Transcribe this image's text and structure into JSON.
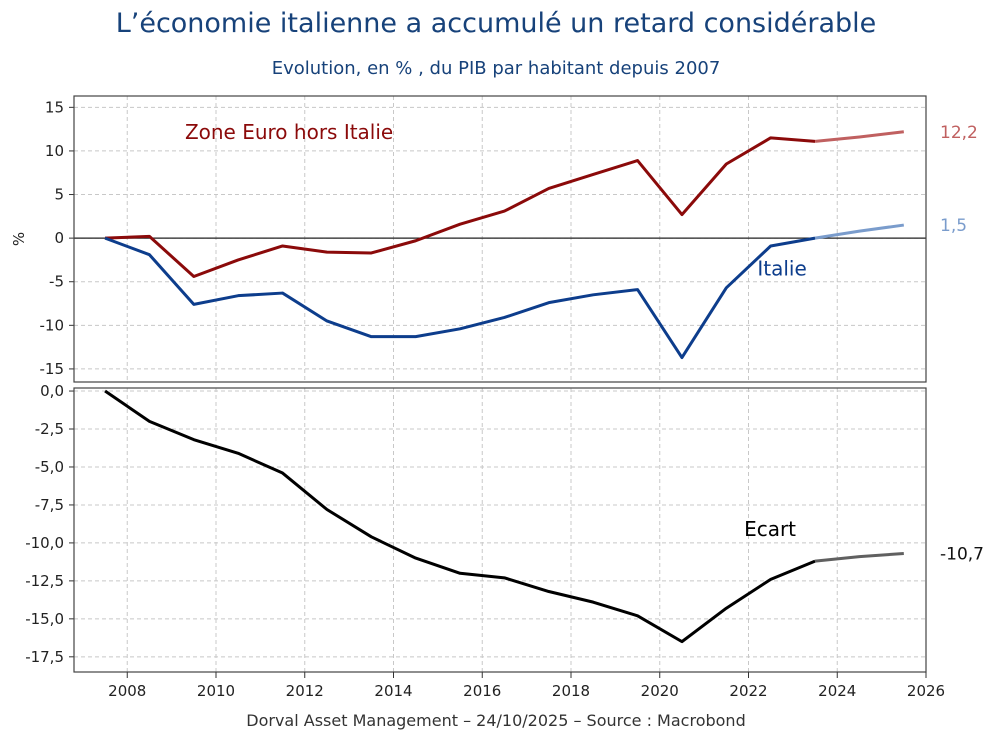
{
  "title": "L’économie italienne a accumulé un retard considérable",
  "subtitle": "Evolution, en % , du PIB par habitant depuis 2007",
  "footer": "Dorval Asset Management – 24/10/2025 –   Source : Macrobond",
  "colors": {
    "title": "#17427a",
    "zone_euro": "#8b0a0a",
    "zone_euro_forecast": "#c06060",
    "italie": "#0d3d8c",
    "italie_forecast": "#7a9ccc",
    "ecart": "#000000",
    "ecart_forecast": "#606060",
    "grid": "#c8c8c8"
  },
  "chart_data": [
    {
      "type": "line",
      "ylabel": "%",
      "ylim": [
        -16,
        16
      ],
      "yticks": [
        15,
        10,
        5,
        0,
        -5,
        -10,
        -15
      ],
      "ytick_labels": [
        "15",
        "10",
        "5",
        "0",
        "-5",
        "-10",
        "-15"
      ],
      "grid": true,
      "zero_line": true,
      "x": [
        2007.5,
        2008.5,
        2009.5,
        2010.5,
        2011.5,
        2012.5,
        2013.5,
        2014.5,
        2015.5,
        2016.5,
        2017.5,
        2018.5,
        2019.5,
        2020.5,
        2021.5,
        2022.5,
        2023.5,
        2024.5,
        2025.5
      ],
      "forecast_from_x": 2023.5,
      "series": [
        {
          "name": "Zone Euro hors Italie",
          "values": [
            0,
            0.2,
            -4.4,
            -2.5,
            -0.9,
            -1.6,
            -1.7,
            -0.3,
            1.6,
            3.1,
            5.7,
            7.3,
            8.9,
            2.7,
            8.5,
            11.5,
            11.1,
            11.6,
            12.2
          ],
          "end_label": "12,2"
        },
        {
          "name": "Italie",
          "values": [
            0,
            -1.9,
            -7.6,
            -6.6,
            -6.3,
            -9.5,
            -11.3,
            -11.3,
            -10.4,
            -9.1,
            -7.4,
            -6.5,
            -5.9,
            -13.7,
            -5.7,
            -0.9,
            0,
            0.8,
            1.5
          ],
          "end_label": "1,5"
        }
      ]
    },
    {
      "type": "line",
      "ylim": [
        -18.5,
        0.2
      ],
      "yticks": [
        0,
        -2.5,
        -5,
        -7.5,
        -10,
        -12.5,
        -15,
        -17.5
      ],
      "ytick_labels": [
        "0,0",
        "-2,5",
        "-5,0",
        "-7,5",
        "-10,0",
        "-12,5",
        "-15,0",
        "-17,5"
      ],
      "grid": true,
      "x": [
        2007.5,
        2008.5,
        2009.5,
        2010.5,
        2011.5,
        2012.5,
        2013.5,
        2014.5,
        2015.5,
        2016.5,
        2017.5,
        2018.5,
        2019.5,
        2020.5,
        2021.5,
        2022.5,
        2023.5,
        2024.5,
        2025.5
      ],
      "forecast_from_x": 2023.5,
      "series": [
        {
          "name": "Ecart",
          "values": [
            0,
            -2,
            -3.2,
            -4.1,
            -5.4,
            -7.8,
            -9.6,
            -11.0,
            -12.0,
            -12.3,
            -13.2,
            -13.9,
            -14.8,
            -16.5,
            -14.3,
            -12.4,
            -11.2,
            -10.9,
            -10.7
          ],
          "end_label": "-10,7"
        }
      ]
    }
  ],
  "xaxis": {
    "xlim": [
      2006.8,
      2026.0
    ],
    "ticks": [
      2008,
      2010,
      2012,
      2014,
      2016,
      2018,
      2020,
      2022,
      2024,
      2026
    ],
    "tick_labels": [
      "2008",
      "2010",
      "2012",
      "2014",
      "2016",
      "2018",
      "2020",
      "2022",
      "2024",
      "2026"
    ]
  }
}
